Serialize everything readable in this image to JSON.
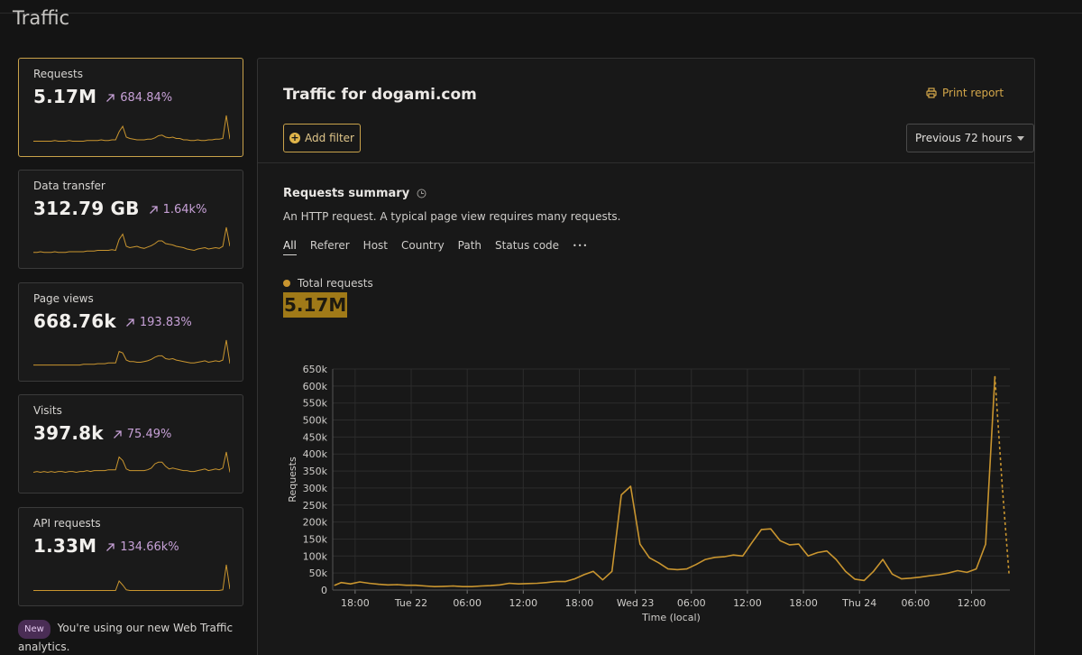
{
  "page": {
    "title": "Traffic"
  },
  "cards": [
    {
      "label": "Requests",
      "value": "5.17M",
      "change": "684.84%",
      "spark": [
        2,
        2,
        2,
        2,
        2,
        2,
        3,
        2,
        2,
        2,
        3,
        2,
        2,
        2,
        2,
        3,
        3,
        3,
        3,
        4,
        3,
        3,
        4,
        4,
        16,
        24,
        8,
        6,
        5,
        4,
        4,
        4,
        5,
        5,
        7,
        10,
        11,
        8,
        7,
        8,
        6,
        6,
        4,
        4,
        3,
        3,
        4,
        3,
        3,
        4,
        4,
        5,
        5,
        6,
        40,
        5
      ]
    },
    {
      "label": "Data transfer",
      "value": "312.79 GB",
      "change": "1.64k%",
      "spark": [
        3,
        3,
        4,
        3,
        3,
        3,
        4,
        3,
        3,
        3,
        4,
        4,
        4,
        4,
        4,
        5,
        5,
        5,
        6,
        6,
        6,
        6,
        7,
        6,
        22,
        30,
        12,
        10,
        11,
        12,
        10,
        9,
        11,
        13,
        16,
        20,
        20,
        16,
        15,
        14,
        12,
        11,
        10,
        8,
        7,
        6,
        8,
        9,
        10,
        8,
        9,
        10,
        9,
        12,
        40,
        12
      ]
    },
    {
      "label": "Page views",
      "value": "668.76k",
      "change": "193.83%",
      "spark": [
        3,
        3,
        3,
        3,
        3,
        3,
        3,
        3,
        3,
        3,
        3,
        3,
        3,
        3,
        4,
        4,
        4,
        4,
        5,
        5,
        5,
        6,
        6,
        6,
        22,
        20,
        10,
        8,
        8,
        7,
        7,
        8,
        9,
        11,
        14,
        16,
        16,
        12,
        11,
        12,
        10,
        9,
        8,
        7,
        6,
        6,
        7,
        8,
        9,
        7,
        8,
        9,
        8,
        10,
        38,
        5
      ]
    },
    {
      "label": "Visits",
      "value": "397.8k",
      "change": "75.49%",
      "spark": [
        8,
        9,
        8,
        9,
        8,
        9,
        8,
        9,
        9,
        8,
        9,
        9,
        8,
        9,
        9,
        10,
        9,
        10,
        10,
        10,
        10,
        11,
        11,
        11,
        26,
        22,
        12,
        10,
        10,
        10,
        10,
        10,
        11,
        13,
        18,
        20,
        20,
        15,
        12,
        13,
        12,
        11,
        10,
        10,
        9,
        9,
        10,
        11,
        12,
        10,
        11,
        12,
        11,
        13,
        32,
        8
      ]
    },
    {
      "label": "API requests",
      "value": "1.33M",
      "change": "134.66k%",
      "spark": [
        2,
        2,
        2,
        2,
        2,
        2,
        2,
        2,
        2,
        2,
        2,
        2,
        2,
        2,
        2,
        2,
        2,
        2,
        2,
        2,
        2,
        2,
        2,
        2,
        16,
        10,
        3,
        2,
        2,
        2,
        2,
        2,
        2,
        2,
        2,
        2,
        2,
        2,
        2,
        2,
        2,
        2,
        2,
        2,
        2,
        2,
        2,
        2,
        2,
        2,
        2,
        2,
        2,
        3,
        40,
        4
      ]
    }
  ],
  "note": {
    "badge": "New",
    "text": "You're using our new Web Traffic analytics."
  },
  "panel": {
    "title": "Traffic for dogami.com",
    "print_label": "Print report",
    "add_filter_label": "Add filter",
    "period": "Previous 72 hours",
    "summary_title": "Requests summary",
    "summary_desc": "An HTTP request. A typical page view requires many requests.",
    "tabs": [
      "All",
      "Referer",
      "Host",
      "Country",
      "Path",
      "Status code"
    ],
    "legend": "Total requests",
    "total": "5.17M"
  },
  "colors": {
    "accent": "#c9952f",
    "change": "#c6a0d6",
    "background": "#141414"
  },
  "chart_data": {
    "type": "line",
    "title": "",
    "xlabel": "Time (local)",
    "ylabel": "Requests",
    "ylim": [
      0,
      650000
    ],
    "yticks": [
      0,
      50000,
      100000,
      150000,
      200000,
      250000,
      300000,
      350000,
      400000,
      450000,
      500000,
      550000,
      600000,
      650000
    ],
    "ytick_labels": [
      "0",
      "50k",
      "100k",
      "150k",
      "200k",
      "250k",
      "300k",
      "350k",
      "400k",
      "450k",
      "500k",
      "550k",
      "600k",
      "650k"
    ],
    "xlim": [
      15.6,
      88.1
    ],
    "xticks": [
      18,
      24,
      30,
      36,
      42,
      48,
      54,
      60,
      66,
      72,
      78,
      84
    ],
    "xtick_labels": [
      "18:00",
      "Tue 22",
      "06:00",
      "12:00",
      "18:00",
      "Wed 23",
      "06:00",
      "12:00",
      "18:00",
      "Thu 24",
      "06:00",
      "12:00"
    ],
    "x_hours": [
      15.8,
      16.5,
      17.5,
      18.5,
      19.5,
      20.5,
      21.5,
      22.5,
      23.5,
      24.5,
      25.5,
      26.5,
      27.5,
      28.5,
      29.5,
      30.5,
      31.5,
      32.5,
      33.5,
      34.5,
      35.5,
      36.5,
      37.5,
      38.5,
      39.5,
      40.5,
      41.5,
      42.5,
      43.5,
      44.5,
      45.5,
      46.5,
      47.5,
      48.5,
      49.5,
      50.5,
      51.5,
      52.5,
      53.5,
      54.5,
      55.5,
      56.5,
      57.5,
      58.5,
      59.5,
      60.5,
      61.5,
      62.5,
      63.5,
      64.5,
      65.5,
      66.5,
      67.5,
      68.5,
      69.5,
      70.5,
      71.5,
      72.5,
      73.5,
      74.5,
      75.5,
      76.5,
      77.5,
      78.5,
      79.5,
      80.5,
      81.5,
      82.5,
      83.5,
      84.5,
      85.5,
      86.5,
      87.3,
      88.0
    ],
    "series": [
      {
        "values": [
          14000,
          22000,
          18000,
          24000,
          20000,
          17000,
          15000,
          16000,
          14000,
          14000,
          12000,
          10000,
          11000,
          12000,
          10000,
          10000,
          12000,
          13000,
          15000,
          20000,
          18000,
          19000,
          20000,
          22000,
          25000,
          25000,
          33000,
          45000,
          55000,
          30000,
          55000,
          280000,
          305000,
          135000,
          95000,
          80000,
          62000,
          60000,
          62000,
          75000,
          90000,
          96000,
          98000,
          103000,
          100000,
          140000,
          178000,
          180000,
          145000,
          133000,
          135000,
          100000,
          110000,
          115000,
          90000,
          55000,
          32000,
          28000,
          55000,
          90000,
          47000,
          33000,
          35000,
          38000,
          42000,
          45000,
          50000,
          57000,
          52000,
          62000,
          135000,
          628000,
          300000,
          50000
        ]
      }
    ],
    "dashed_from_index": 71,
    "grid": true
  }
}
